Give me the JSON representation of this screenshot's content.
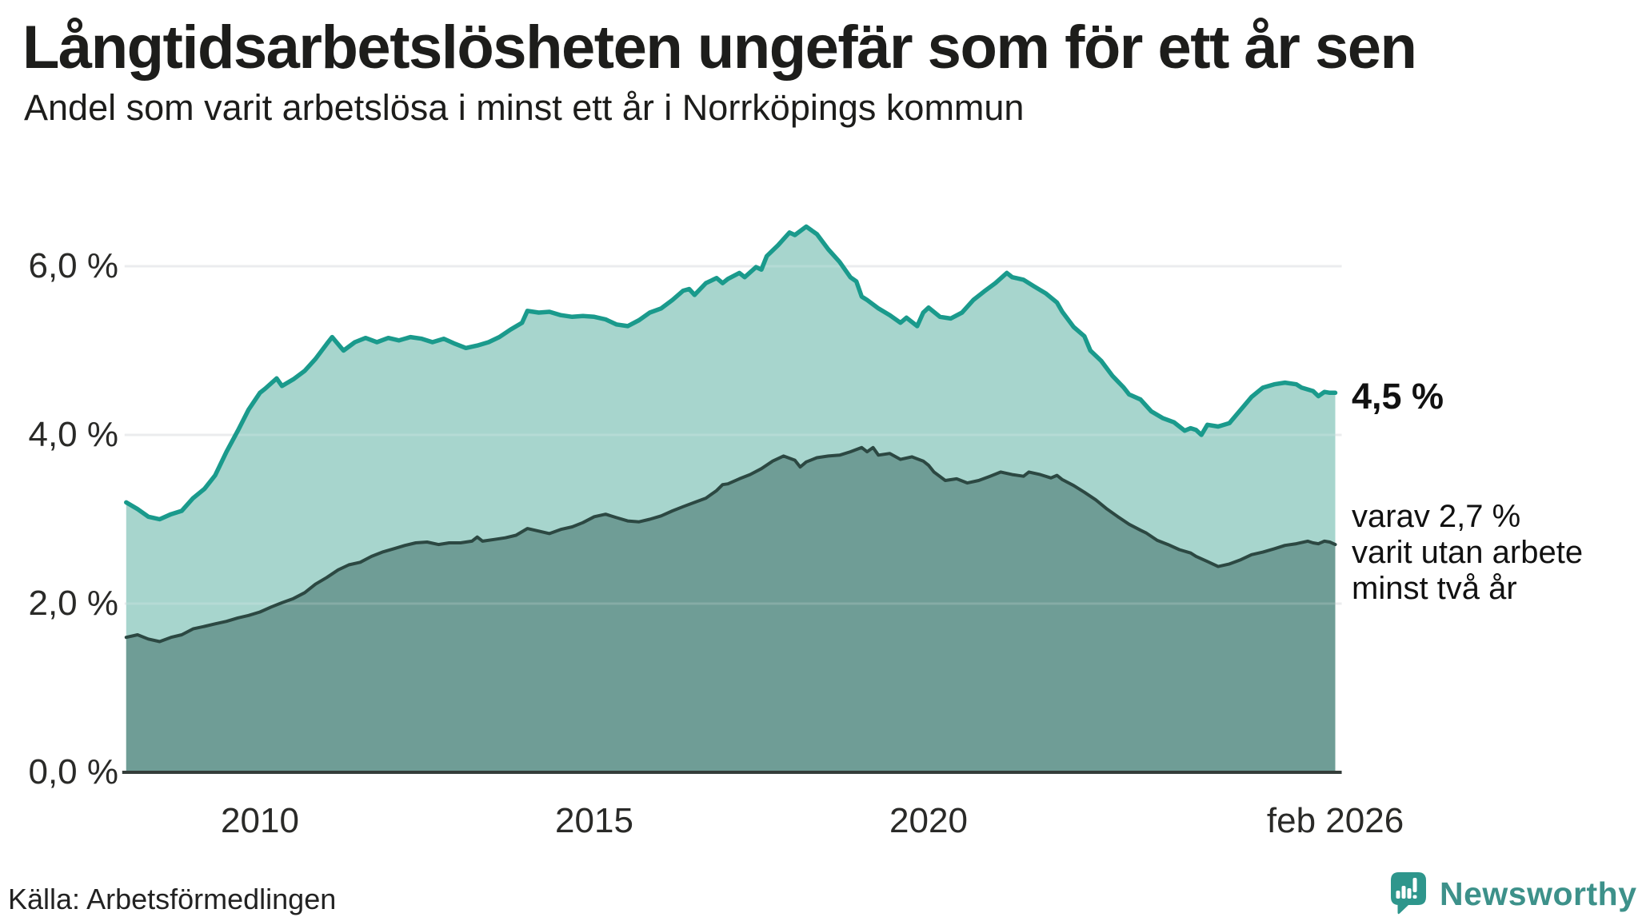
{
  "title": "Långtidsarbetslösheten ungefär som för ett år sen",
  "subtitle": "Andel som varit arbetslösa i minst ett år i Norrköpings kommun",
  "source": "Källa: Arbetsförmedlingen",
  "branding": {
    "name": "Newsworthy",
    "logo_color": "#2e968c",
    "text_color": "#3d918a"
  },
  "annotations": {
    "latest_value": "4,5 %",
    "note_lines": [
      "varav 2,7 %",
      "varit utan arbete",
      "minst två år"
    ]
  },
  "colors": {
    "series1_line": "#1a9a8c",
    "series1_fill": "#a7d5cd",
    "series2_line": "#2c4842",
    "series2_fill": "#6f9d96",
    "grid": "#e8e9eb",
    "grid_overlay": "rgba(255,255,255,0.16)",
    "axis": "#343d3a"
  },
  "chart_data": {
    "type": "area",
    "title": "Långtidsarbetslösheten ungefär som för ett år sen",
    "subtitle": "Andel som varit arbetslösa i minst ett år i Norrköpings kommun",
    "unit": "percent",
    "xlim": [
      2008.0,
      2026.083
    ],
    "ylim": [
      0,
      6.6
    ],
    "grid": "horizontal",
    "x_ticks": [
      {
        "t": 2010,
        "label": "2010"
      },
      {
        "t": 2015,
        "label": "2015"
      },
      {
        "t": 2020,
        "label": "2020"
      },
      {
        "t": 2026.083,
        "label": "feb 2026"
      }
    ],
    "y_ticks": [
      {
        "v": 0,
        "label": "0,0 %"
      },
      {
        "v": 2,
        "label": "2,0 %"
      },
      {
        "v": 4,
        "label": "4,0 %"
      },
      {
        "v": 6,
        "label": "6,0 %"
      }
    ],
    "series": [
      {
        "name": "Arbetslösa minst ett år",
        "latest_label": "4,5 %",
        "points": [
          [
            2008.0,
            3.2
          ],
          [
            2008.17,
            3.12
          ],
          [
            2008.33,
            3.03
          ],
          [
            2008.5,
            3.0
          ],
          [
            2008.67,
            3.06
          ],
          [
            2008.83,
            3.1
          ],
          [
            2009.0,
            3.25
          ],
          [
            2009.17,
            3.36
          ],
          [
            2009.33,
            3.52
          ],
          [
            2009.5,
            3.8
          ],
          [
            2009.67,
            4.05
          ],
          [
            2009.83,
            4.3
          ],
          [
            2010.0,
            4.5
          ],
          [
            2010.08,
            4.55
          ],
          [
            2010.25,
            4.67
          ],
          [
            2010.33,
            4.58
          ],
          [
            2010.5,
            4.66
          ],
          [
            2010.67,
            4.76
          ],
          [
            2010.83,
            4.9
          ],
          [
            2011.0,
            5.08
          ],
          [
            2011.08,
            5.16
          ],
          [
            2011.25,
            5.0
          ],
          [
            2011.42,
            5.1
          ],
          [
            2011.58,
            5.15
          ],
          [
            2011.75,
            5.1
          ],
          [
            2011.92,
            5.15
          ],
          [
            2012.08,
            5.12
          ],
          [
            2012.25,
            5.16
          ],
          [
            2012.42,
            5.14
          ],
          [
            2012.58,
            5.1
          ],
          [
            2012.75,
            5.14
          ],
          [
            2012.92,
            5.08
          ],
          [
            2013.08,
            5.03
          ],
          [
            2013.25,
            5.06
          ],
          [
            2013.42,
            5.1
          ],
          [
            2013.58,
            5.16
          ],
          [
            2013.75,
            5.25
          ],
          [
            2013.92,
            5.33
          ],
          [
            2014.0,
            5.47
          ],
          [
            2014.17,
            5.45
          ],
          [
            2014.33,
            5.46
          ],
          [
            2014.5,
            5.42
          ],
          [
            2014.67,
            5.4
          ],
          [
            2014.83,
            5.41
          ],
          [
            2015.0,
            5.4
          ],
          [
            2015.17,
            5.37
          ],
          [
            2015.33,
            5.31
          ],
          [
            2015.5,
            5.29
          ],
          [
            2015.67,
            5.36
          ],
          [
            2015.83,
            5.45
          ],
          [
            2016.0,
            5.5
          ],
          [
            2016.17,
            5.6
          ],
          [
            2016.33,
            5.71
          ],
          [
            2016.42,
            5.73
          ],
          [
            2016.5,
            5.66
          ],
          [
            2016.67,
            5.8
          ],
          [
            2016.83,
            5.86
          ],
          [
            2016.92,
            5.8
          ],
          [
            2017.0,
            5.85
          ],
          [
            2017.17,
            5.92
          ],
          [
            2017.25,
            5.87
          ],
          [
            2017.42,
            5.99
          ],
          [
            2017.5,
            5.96
          ],
          [
            2017.58,
            6.12
          ],
          [
            2017.75,
            6.25
          ],
          [
            2017.92,
            6.4
          ],
          [
            2018.0,
            6.37
          ],
          [
            2018.17,
            6.47
          ],
          [
            2018.33,
            6.38
          ],
          [
            2018.5,
            6.2
          ],
          [
            2018.67,
            6.05
          ],
          [
            2018.83,
            5.87
          ],
          [
            2018.92,
            5.82
          ],
          [
            2019.0,
            5.64
          ],
          [
            2019.08,
            5.6
          ],
          [
            2019.25,
            5.5
          ],
          [
            2019.42,
            5.42
          ],
          [
            2019.58,
            5.33
          ],
          [
            2019.67,
            5.39
          ],
          [
            2019.83,
            5.29
          ],
          [
            2019.92,
            5.45
          ],
          [
            2020.0,
            5.51
          ],
          [
            2020.17,
            5.4
          ],
          [
            2020.33,
            5.38
          ],
          [
            2020.5,
            5.45
          ],
          [
            2020.67,
            5.6
          ],
          [
            2020.83,
            5.7
          ],
          [
            2021.0,
            5.8
          ],
          [
            2021.17,
            5.92
          ],
          [
            2021.25,
            5.87
          ],
          [
            2021.42,
            5.84
          ],
          [
            2021.58,
            5.76
          ],
          [
            2021.75,
            5.68
          ],
          [
            2021.92,
            5.57
          ],
          [
            2022.0,
            5.46
          ],
          [
            2022.17,
            5.28
          ],
          [
            2022.33,
            5.17
          ],
          [
            2022.42,
            5.0
          ],
          [
            2022.58,
            4.88
          ],
          [
            2022.75,
            4.7
          ],
          [
            2022.92,
            4.56
          ],
          [
            2023.0,
            4.48
          ],
          [
            2023.17,
            4.42
          ],
          [
            2023.33,
            4.28
          ],
          [
            2023.5,
            4.2
          ],
          [
            2023.67,
            4.15
          ],
          [
            2023.83,
            4.05
          ],
          [
            2023.92,
            4.08
          ],
          [
            2024.0,
            4.06
          ],
          [
            2024.08,
            4.0
          ],
          [
            2024.17,
            4.12
          ],
          [
            2024.33,
            4.1
          ],
          [
            2024.5,
            4.14
          ],
          [
            2024.67,
            4.3
          ],
          [
            2024.83,
            4.45
          ],
          [
            2025.0,
            4.56
          ],
          [
            2025.17,
            4.6
          ],
          [
            2025.33,
            4.62
          ],
          [
            2025.5,
            4.6
          ],
          [
            2025.58,
            4.56
          ],
          [
            2025.75,
            4.52
          ],
          [
            2025.83,
            4.46
          ],
          [
            2025.92,
            4.51
          ],
          [
            2026.0,
            4.5
          ],
          [
            2026.083,
            4.5
          ]
        ]
      },
      {
        "name": "varav utan arbete minst två år",
        "latest_label": "2,7 %",
        "points": [
          [
            2008.0,
            1.6
          ],
          [
            2008.17,
            1.63
          ],
          [
            2008.33,
            1.58
          ],
          [
            2008.5,
            1.55
          ],
          [
            2008.67,
            1.6
          ],
          [
            2008.83,
            1.63
          ],
          [
            2009.0,
            1.7
          ],
          [
            2009.17,
            1.73
          ],
          [
            2009.33,
            1.76
          ],
          [
            2009.5,
            1.79
          ],
          [
            2009.67,
            1.83
          ],
          [
            2009.83,
            1.86
          ],
          [
            2010.0,
            1.9
          ],
          [
            2010.17,
            1.96
          ],
          [
            2010.33,
            2.01
          ],
          [
            2010.5,
            2.06
          ],
          [
            2010.67,
            2.13
          ],
          [
            2010.83,
            2.23
          ],
          [
            2011.0,
            2.31
          ],
          [
            2011.17,
            2.4
          ],
          [
            2011.33,
            2.46
          ],
          [
            2011.5,
            2.49
          ],
          [
            2011.67,
            2.56
          ],
          [
            2011.83,
            2.61
          ],
          [
            2012.0,
            2.65
          ],
          [
            2012.17,
            2.69
          ],
          [
            2012.33,
            2.72
          ],
          [
            2012.5,
            2.73
          ],
          [
            2012.67,
            2.7
          ],
          [
            2012.83,
            2.72
          ],
          [
            2013.0,
            2.72
          ],
          [
            2013.17,
            2.74
          ],
          [
            2013.25,
            2.79
          ],
          [
            2013.33,
            2.74
          ],
          [
            2013.5,
            2.76
          ],
          [
            2013.67,
            2.78
          ],
          [
            2013.83,
            2.81
          ],
          [
            2014.0,
            2.89
          ],
          [
            2014.17,
            2.86
          ],
          [
            2014.33,
            2.83
          ],
          [
            2014.5,
            2.88
          ],
          [
            2014.67,
            2.91
          ],
          [
            2014.83,
            2.96
          ],
          [
            2015.0,
            3.03
          ],
          [
            2015.17,
            3.06
          ],
          [
            2015.33,
            3.02
          ],
          [
            2015.5,
            2.98
          ],
          [
            2015.67,
            2.97
          ],
          [
            2015.83,
            3.0
          ],
          [
            2016.0,
            3.04
          ],
          [
            2016.17,
            3.1
          ],
          [
            2016.33,
            3.15
          ],
          [
            2016.5,
            3.2
          ],
          [
            2016.67,
            3.25
          ],
          [
            2016.83,
            3.34
          ],
          [
            2016.92,
            3.41
          ],
          [
            2017.0,
            3.42
          ],
          [
            2017.17,
            3.48
          ],
          [
            2017.33,
            3.53
          ],
          [
            2017.5,
            3.6
          ],
          [
            2017.67,
            3.69
          ],
          [
            2017.83,
            3.75
          ],
          [
            2018.0,
            3.7
          ],
          [
            2018.08,
            3.62
          ],
          [
            2018.17,
            3.68
          ],
          [
            2018.33,
            3.73
          ],
          [
            2018.5,
            3.75
          ],
          [
            2018.67,
            3.76
          ],
          [
            2018.83,
            3.8
          ],
          [
            2019.0,
            3.85
          ],
          [
            2019.08,
            3.8
          ],
          [
            2019.17,
            3.85
          ],
          [
            2019.25,
            3.76
          ],
          [
            2019.42,
            3.78
          ],
          [
            2019.58,
            3.71
          ],
          [
            2019.75,
            3.74
          ],
          [
            2019.92,
            3.69
          ],
          [
            2020.0,
            3.64
          ],
          [
            2020.08,
            3.56
          ],
          [
            2020.25,
            3.46
          ],
          [
            2020.42,
            3.48
          ],
          [
            2020.58,
            3.43
          ],
          [
            2020.75,
            3.46
          ],
          [
            2020.92,
            3.51
          ],
          [
            2021.08,
            3.56
          ],
          [
            2021.25,
            3.53
          ],
          [
            2021.42,
            3.51
          ],
          [
            2021.5,
            3.56
          ],
          [
            2021.67,
            3.53
          ],
          [
            2021.83,
            3.49
          ],
          [
            2021.92,
            3.52
          ],
          [
            2022.0,
            3.47
          ],
          [
            2022.17,
            3.4
          ],
          [
            2022.33,
            3.32
          ],
          [
            2022.5,
            3.23
          ],
          [
            2022.67,
            3.12
          ],
          [
            2022.83,
            3.03
          ],
          [
            2023.0,
            2.94
          ],
          [
            2023.17,
            2.87
          ],
          [
            2023.25,
            2.84
          ],
          [
            2023.42,
            2.75
          ],
          [
            2023.58,
            2.7
          ],
          [
            2023.75,
            2.64
          ],
          [
            2023.92,
            2.6
          ],
          [
            2024.0,
            2.56
          ],
          [
            2024.17,
            2.5
          ],
          [
            2024.33,
            2.44
          ],
          [
            2024.5,
            2.47
          ],
          [
            2024.67,
            2.52
          ],
          [
            2024.83,
            2.58
          ],
          [
            2025.0,
            2.61
          ],
          [
            2025.17,
            2.65
          ],
          [
            2025.33,
            2.69
          ],
          [
            2025.5,
            2.71
          ],
          [
            2025.67,
            2.74
          ],
          [
            2025.75,
            2.72
          ],
          [
            2025.83,
            2.71
          ],
          [
            2025.92,
            2.74
          ],
          [
            2026.0,
            2.73
          ],
          [
            2026.083,
            2.7
          ]
        ]
      }
    ]
  }
}
